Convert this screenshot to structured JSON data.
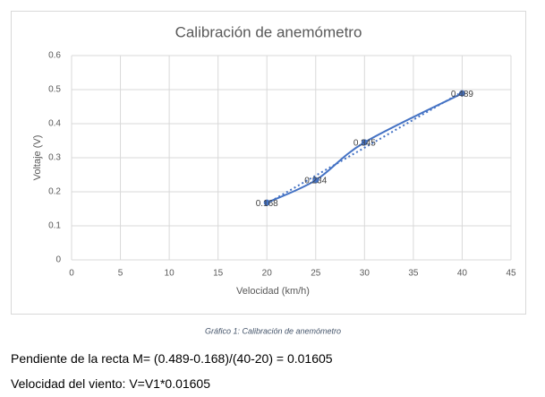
{
  "chart_data": {
    "type": "line",
    "title": "Calibración de anemómetro",
    "x_label": "Velocidad (km/h)",
    "y_label": "Voltaje (V)",
    "x": [
      20,
      25,
      30,
      40
    ],
    "series": [
      {
        "name": "Voltaje",
        "color": "#4472c4",
        "values": [
          0.168,
          0.234,
          0.345,
          0.489
        ]
      }
    ],
    "xlim": [
      0,
      45
    ],
    "xticks": [
      0,
      5,
      10,
      15,
      20,
      25,
      30,
      35,
      40,
      45
    ],
    "ylim": [
      0,
      0.6
    ],
    "yticks": [
      0,
      0.1,
      0.2,
      0.3,
      0.4,
      0.5,
      0.6
    ],
    "grid": true,
    "trendline": "linear",
    "smooth": true,
    "data_labels": true
  },
  "caption": "Gráfico 1: Calibración de anemómetro",
  "paragraphs": [
    "Pendiente de la recta M= (0.489-0.168)/(40-20) = 0.01605",
    "Velocidad del viento: V=V1*0.01605"
  ]
}
